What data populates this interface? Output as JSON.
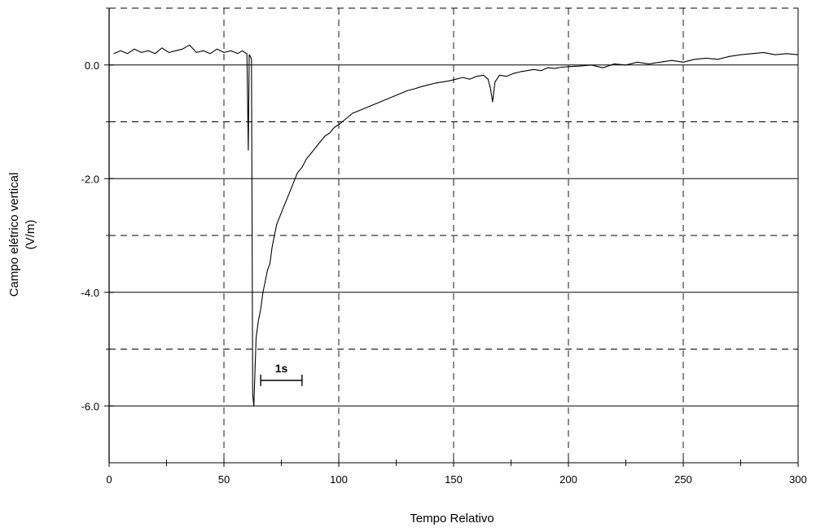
{
  "chart_data": {
    "type": "line",
    "title": "",
    "xlabel": "Tempo Relativo",
    "ylabel_line1": "Campo elétrico vertical",
    "ylabel_line2": "(V/m)",
    "xlim": [
      0,
      300
    ],
    "ylim": [
      -7,
      1
    ],
    "x_ticks": [
      0,
      50,
      100,
      150,
      200,
      250,
      300
    ],
    "x_tick_labels": [
      "0",
      "50",
      "100",
      "150",
      "200",
      "250",
      "300"
    ],
    "y_ticks": [
      0,
      -2,
      -4,
      -6
    ],
    "y_tick_labels": [
      "0.0",
      "-2.0",
      "-4.0",
      "-6.0"
    ],
    "x_minor_dashed": [
      50,
      100,
      150,
      200,
      250
    ],
    "y_minor_dashed": [
      1,
      -1,
      -3,
      -5
    ],
    "y_major_solid": [
      0,
      -2,
      -4,
      -6,
      -7
    ],
    "grid": true,
    "legend": "none",
    "annotation": {
      "label": "1s",
      "x_start": 66,
      "x_end": 84,
      "y": -5.55
    },
    "series": [
      {
        "values_x": [
          2,
          5,
          8,
          11,
          14,
          17,
          20,
          23,
          26,
          29,
          32,
          35,
          38,
          41,
          44,
          47,
          50,
          53,
          56,
          58,
          59,
          60,
          60.6,
          61,
          61.5,
          62,
          62.5,
          63,
          64,
          65,
          66,
          67,
          68,
          69,
          70,
          71,
          72,
          73,
          74,
          75,
          76,
          77,
          78,
          79,
          80,
          82,
          84,
          86,
          88,
          90,
          92,
          94,
          96,
          98,
          100,
          103,
          106,
          109,
          112,
          115,
          118,
          121,
          124,
          127,
          130,
          133,
          136,
          139,
          142,
          145,
          148,
          151,
          154,
          157,
          160,
          163,
          165,
          166,
          167,
          168,
          170,
          173,
          176,
          179,
          182,
          185,
          188,
          191,
          194,
          197,
          200,
          205,
          210,
          215,
          220,
          225,
          230,
          235,
          240,
          245,
          250,
          255,
          260,
          265,
          270,
          275,
          280,
          285,
          290,
          295,
          300
        ],
        "values_y": [
          0.2,
          0.25,
          0.2,
          0.28,
          0.22,
          0.25,
          0.2,
          0.3,
          0.22,
          0.25,
          0.28,
          0.35,
          0.22,
          0.25,
          0.2,
          0.28,
          0.22,
          0.25,
          0.2,
          0.25,
          0.22,
          0.2,
          -1.5,
          0.18,
          0.15,
          0.1,
          -5.8,
          -6.0,
          -4.8,
          -4.5,
          -4.3,
          -4.0,
          -3.8,
          -3.6,
          -3.5,
          -3.2,
          -3.0,
          -2.8,
          -2.7,
          -2.6,
          -2.5,
          -2.4,
          -2.3,
          -2.2,
          -2.1,
          -1.9,
          -1.8,
          -1.65,
          -1.55,
          -1.45,
          -1.35,
          -1.25,
          -1.2,
          -1.1,
          -1.05,
          -0.95,
          -0.85,
          -0.8,
          -0.75,
          -0.7,
          -0.65,
          -0.6,
          -0.55,
          -0.5,
          -0.45,
          -0.42,
          -0.38,
          -0.35,
          -0.32,
          -0.3,
          -0.28,
          -0.25,
          -0.22,
          -0.25,
          -0.2,
          -0.18,
          -0.25,
          -0.4,
          -0.65,
          -0.3,
          -0.18,
          -0.2,
          -0.15,
          -0.12,
          -0.1,
          -0.08,
          -0.1,
          -0.05,
          -0.06,
          -0.04,
          -0.03,
          -0.02,
          0.0,
          -0.05,
          0.02,
          0.0,
          0.05,
          0.02,
          0.05,
          0.08,
          0.05,
          0.1,
          0.12,
          0.1,
          0.15,
          0.18,
          0.2,
          0.22,
          0.18,
          0.2,
          0.18
        ]
      }
    ]
  }
}
